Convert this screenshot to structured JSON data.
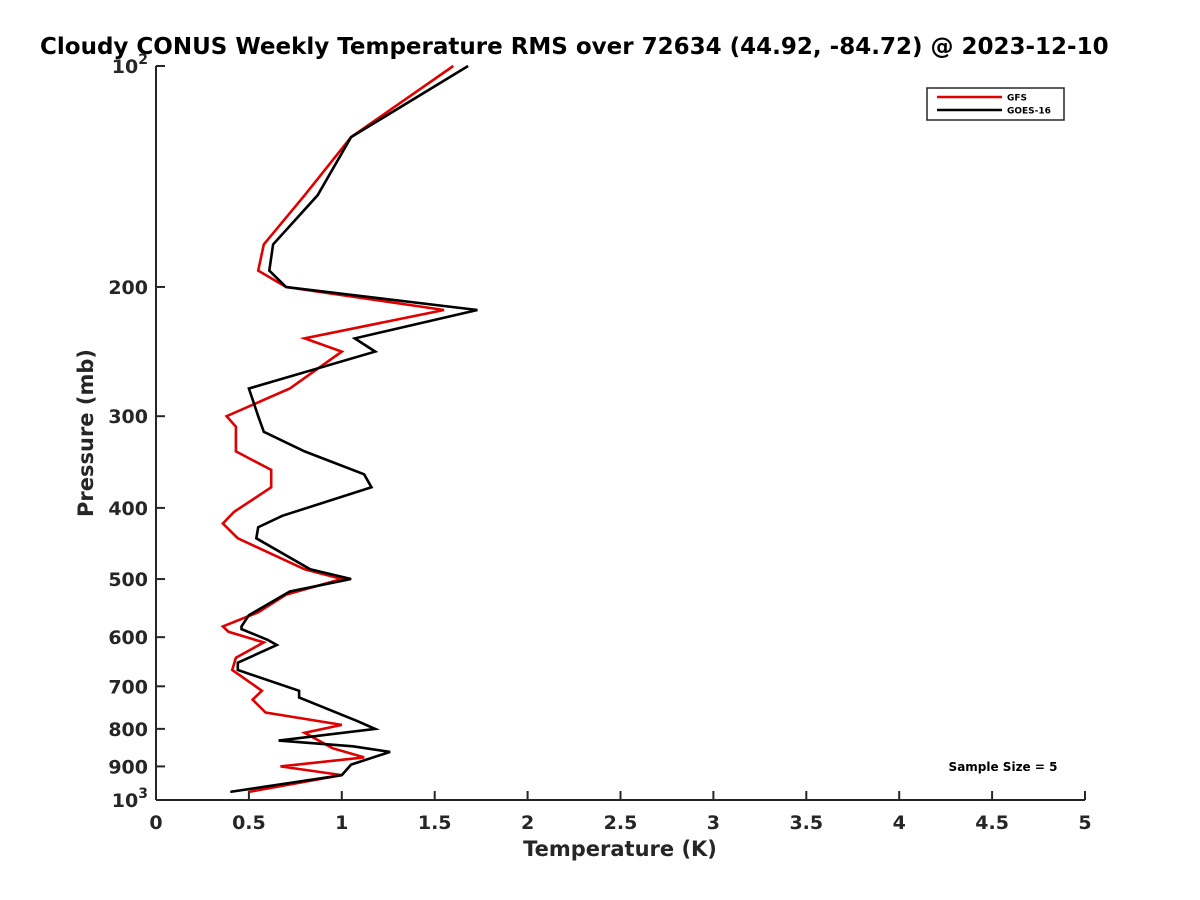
{
  "chart_data": {
    "type": "line",
    "title": "Cloudy CONUS Weekly Temperature RMS over 72634 (44.92, -84.72) @ 2023-12-10",
    "xlabel": "Temperature (K)",
    "ylabel": "Pressure (mb)",
    "xlim": [
      0,
      5
    ],
    "ylim": [
      1000,
      100
    ],
    "yscale": "log",
    "x_ticks": [
      0,
      0.5,
      1,
      1.5,
      2,
      2.5,
      3,
      3.5,
      4,
      4.5,
      5
    ],
    "x_tick_labels": [
      "0",
      "0.5",
      "1",
      "1.5",
      "2",
      "2.5",
      "3",
      "3.5",
      "4",
      "4.5",
      "5"
    ],
    "y_ticks": [
      100,
      200,
      300,
      400,
      500,
      600,
      700,
      800,
      900,
      1000
    ],
    "y_tick_labels": [
      {
        "base": "10",
        "exp": "2"
      },
      {
        "base": "200",
        "exp": ""
      },
      {
        "base": "300",
        "exp": ""
      },
      {
        "base": "400",
        "exp": ""
      },
      {
        "base": "500",
        "exp": ""
      },
      {
        "base": "600",
        "exp": ""
      },
      {
        "base": "700",
        "exp": ""
      },
      {
        "base": "800",
        "exp": ""
      },
      {
        "base": "900",
        "exp": ""
      },
      {
        "base": "10",
        "exp": "3"
      }
    ],
    "grid": false,
    "legend_position": "top-right",
    "series": [
      {
        "name": "GFS",
        "color": "#e00000",
        "points": [
          [
            1.6,
            100
          ],
          [
            1.05,
            125
          ],
          [
            0.8,
            150
          ],
          [
            0.58,
            175
          ],
          [
            0.55,
            190
          ],
          [
            0.7,
            200
          ],
          [
            1.55,
            215
          ],
          [
            0.8,
            235
          ],
          [
            1.0,
            245
          ],
          [
            0.72,
            275
          ],
          [
            0.38,
            300
          ],
          [
            0.43,
            310
          ],
          [
            0.43,
            335
          ],
          [
            0.62,
            355
          ],
          [
            0.62,
            375
          ],
          [
            0.42,
            405
          ],
          [
            0.36,
            420
          ],
          [
            0.44,
            440
          ],
          [
            0.8,
            485
          ],
          [
            1.0,
            500
          ],
          [
            0.7,
            525
          ],
          [
            0.55,
            555
          ],
          [
            0.36,
            580
          ],
          [
            0.39,
            590
          ],
          [
            0.58,
            610
          ],
          [
            0.43,
            640
          ],
          [
            0.41,
            665
          ],
          [
            0.57,
            710
          ],
          [
            0.52,
            730
          ],
          [
            0.59,
            760
          ],
          [
            1.0,
            790
          ],
          [
            0.8,
            810
          ],
          [
            0.95,
            850
          ],
          [
            1.12,
            875
          ],
          [
            0.67,
            900
          ],
          [
            1.0,
            925
          ],
          [
            0.5,
            975
          ]
        ]
      },
      {
        "name": "GOES-16",
        "color": "#000000",
        "points": [
          [
            1.68,
            100
          ],
          [
            1.05,
            125
          ],
          [
            0.87,
            150
          ],
          [
            0.63,
            175
          ],
          [
            0.61,
            190
          ],
          [
            0.7,
            200
          ],
          [
            1.73,
            215
          ],
          [
            1.07,
            235
          ],
          [
            1.18,
            245
          ],
          [
            0.5,
            275
          ],
          [
            0.55,
            300
          ],
          [
            0.58,
            315
          ],
          [
            0.8,
            335
          ],
          [
            1.12,
            360
          ],
          [
            1.16,
            375
          ],
          [
            0.68,
            410
          ],
          [
            0.55,
            425
          ],
          [
            0.54,
            440
          ],
          [
            0.83,
            485
          ],
          [
            1.05,
            500
          ],
          [
            0.72,
            520
          ],
          [
            0.5,
            560
          ],
          [
            0.46,
            580
          ],
          [
            0.46,
            585
          ],
          [
            0.6,
            605
          ],
          [
            0.65,
            615
          ],
          [
            0.44,
            650
          ],
          [
            0.44,
            665
          ],
          [
            0.77,
            710
          ],
          [
            0.77,
            725
          ],
          [
            1.08,
            780
          ],
          [
            1.18,
            800
          ],
          [
            0.66,
            830
          ],
          [
            1.06,
            845
          ],
          [
            1.26,
            860
          ],
          [
            1.05,
            895
          ],
          [
            1.0,
            925
          ],
          [
            0.4,
            975
          ]
        ]
      }
    ],
    "annotations": [
      {
        "text": "Sample Size = 5",
        "position": "bottom-right"
      }
    ]
  }
}
